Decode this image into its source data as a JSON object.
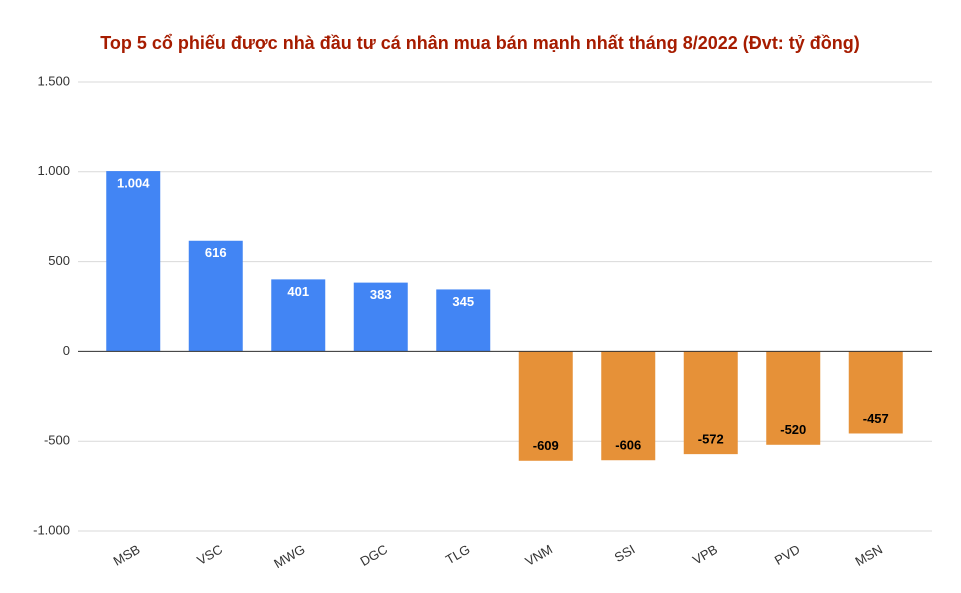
{
  "chart_data": {
    "type": "bar",
    "title": "Top 5 cổ phiếu được nhà đầu tư cá nhân mua bán mạnh nhất tháng 8/2022 (Đvt: tỷ đồng)",
    "categories": [
      "MSB",
      "VSC",
      "MWG",
      "DGC",
      "TLG",
      "VNM",
      "SSI",
      "VPB",
      "PVD",
      "MSN"
    ],
    "values": [
      1004,
      616,
      401,
      383,
      345,
      -609,
      -606,
      -572,
      -520,
      -457
    ],
    "value_labels": [
      "1.004",
      "616",
      "401",
      "383",
      "345",
      "-609",
      "-606",
      "-572",
      "-520",
      "-457"
    ],
    "colors": [
      "#4285f4",
      "#4285f4",
      "#4285f4",
      "#4285f4",
      "#4285f4",
      "#e69138",
      "#e69138",
      "#e69138",
      "#e69138",
      "#e69138"
    ],
    "ylim": [
      -1000,
      1500
    ],
    "yticks": [
      {
        "value": -1000,
        "label": "-1.000"
      },
      {
        "value": -500,
        "label": "-500"
      },
      0,
      500,
      {
        "value": 1000,
        "label": "1.000"
      },
      {
        "value": 1500,
        "label": "1.500"
      }
    ],
    "grid": true
  }
}
